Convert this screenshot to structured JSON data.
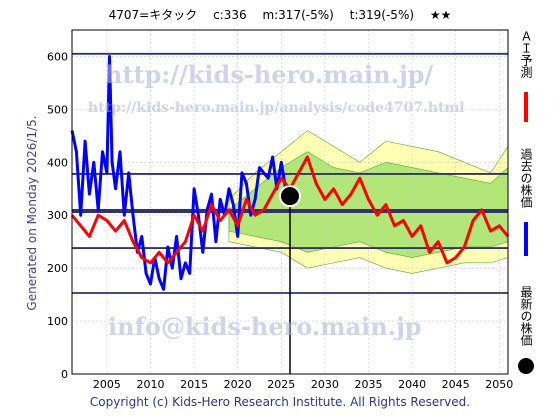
{
  "header": {
    "code_name": "4707=キタック",
    "close": "c:336",
    "median": "m:317(-5%)",
    "target": "t:319(-5%)",
    "stars": "★★"
  },
  "side_label": "Generated on Monday 2026/1/5.",
  "watermarks": {
    "url": "http://kids-hero.main.jp/",
    "analysis_url": "http://kids-hero.main.jp/analysis/code4707.html",
    "email": "info@kids-hero.main.jp"
  },
  "footer": "Copyright (c) Kids-Hero Research Institute. All Rights Reserved.",
  "legend": {
    "forecast": "ＡＩ予測",
    "past": "過去の株価",
    "latest": "最新の株価"
  },
  "colors": {
    "forecast": "#ff0000",
    "past": "#0000ff",
    "latest": "#000000",
    "band_light": "#ffff99",
    "band_green": "#99dd66",
    "hline": "#333366",
    "grid": "#cccccc"
  },
  "chart_data": {
    "type": "line",
    "xlim": [
      2001,
      2051
    ],
    "ylim": [
      0,
      650
    ],
    "xticks": [
      2005,
      2010,
      2015,
      2020,
      2025,
      2030,
      2035,
      2040,
      2045,
      2050
    ],
    "yticks": [
      0,
      100,
      200,
      300,
      400,
      500,
      600
    ],
    "reference_lines": [
      605,
      378,
      308,
      238,
      153
    ],
    "latest_point": {
      "x": 2026.0,
      "y": 336
    },
    "grid": true,
    "series": [
      {
        "key": "past",
        "x": [
          2001,
          2001.5,
          2002,
          2002.5,
          2003,
          2003.5,
          2004,
          2004.5,
          2005,
          2005.3,
          2005.6,
          2006,
          2006.5,
          2007,
          2007.5,
          2008,
          2008.5,
          2009,
          2009.5,
          2010,
          2010.5,
          2011,
          2011.5,
          2012,
          2012.5,
          2013,
          2013.5,
          2014,
          2014.5,
          2015,
          2015.5,
          2016,
          2016.5,
          2017,
          2017.5,
          2018,
          2018.5,
          2019,
          2019.5,
          2020,
          2020.5,
          2021,
          2021.5,
          2022,
          2022.5,
          2023,
          2023.5,
          2024,
          2024.5,
          2025,
          2025.5,
          2026
        ],
        "values": [
          460,
          420,
          300,
          440,
          340,
          400,
          310,
          420,
          380,
          600,
          400,
          350,
          420,
          300,
          380,
          300,
          230,
          260,
          190,
          170,
          220,
          180,
          160,
          240,
          200,
          260,
          180,
          210,
          190,
          350,
          300,
          230,
          310,
          340,
          250,
          330,
          300,
          350,
          320,
          260,
          380,
          360,
          300,
          330,
          390,
          380,
          370,
          410,
          350,
          400,
          350,
          336
        ]
      },
      {
        "key": "forecast",
        "x": [
          2001,
          2002,
          2003,
          2004,
          2005,
          2006,
          2007,
          2008,
          2009,
          2010,
          2011,
          2012,
          2013,
          2014,
          2015,
          2016,
          2017,
          2018,
          2019,
          2020,
          2021,
          2022,
          2023,
          2024,
          2025,
          2026,
          2027,
          2028,
          2029,
          2030,
          2031,
          2032,
          2033,
          2034,
          2035,
          2036,
          2037,
          2038,
          2039,
          2040,
          2041,
          2042,
          2043,
          2044,
          2045,
          2046,
          2047,
          2048,
          2049,
          2050,
          2051
        ],
        "values": [
          300,
          280,
          260,
          300,
          290,
          270,
          290,
          250,
          220,
          210,
          230,
          210,
          230,
          250,
          300,
          270,
          320,
          290,
          310,
          280,
          330,
          300,
          310,
          340,
          370,
          350,
          380,
          410,
          360,
          330,
          350,
          320,
          340,
          370,
          330,
          300,
          320,
          280,
          290,
          260,
          280,
          230,
          250,
          210,
          220,
          240,
          290,
          310,
          270,
          280,
          260
        ]
      }
    ],
    "bands": [
      {
        "x": [
          2019,
          2022,
          2025,
          2028,
          2031,
          2034,
          2037,
          2040,
          2043,
          2046,
          2049,
          2051
        ],
        "upper": [
          330,
          380,
          420,
          460,
          430,
          400,
          440,
          430,
          420,
          400,
          380,
          430
        ],
        "lower": [
          250,
          240,
          230,
          200,
          210,
          220,
          200,
          190,
          200,
          210,
          210,
          220
        ]
      },
      {
        "x": [
          2019,
          2022,
          2025,
          2028,
          2031,
          2034,
          2037,
          2040,
          2043,
          2046,
          2049,
          2051
        ],
        "upper": [
          310,
          350,
          390,
          420,
          390,
          380,
          400,
          390,
          380,
          370,
          360,
          390
        ],
        "lower": [
          270,
          260,
          250,
          230,
          240,
          250,
          230,
          220,
          230,
          240,
          240,
          250
        ]
      }
    ]
  }
}
